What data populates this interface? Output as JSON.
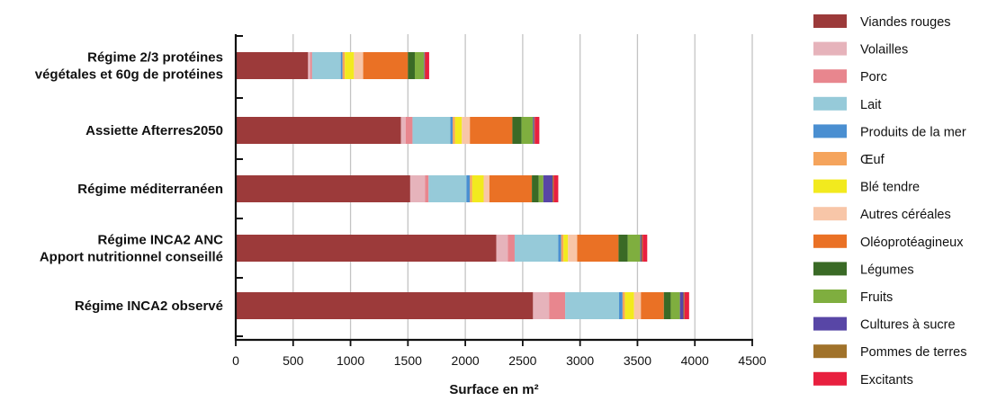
{
  "chart_data": {
    "type": "bar",
    "orientation": "horizontal",
    "stacked": true,
    "xlabel": "Surface en m²",
    "xlim": [
      0,
      4500
    ],
    "xticks": [
      0,
      500,
      1000,
      1500,
      2000,
      2500,
      3000,
      3500,
      4000,
      4500
    ],
    "grid": true,
    "legend_position": "right",
    "categories": [
      [
        "Régime 2/3 protéines",
        "végétales et 60g de protéines"
      ],
      [
        "Assiette Afterres2050"
      ],
      [
        "Régime méditerranéen"
      ],
      [
        "Régime INCA2 ANC",
        "Apport nutritionnel conseillé"
      ],
      [
        "Régime INCA2 observé"
      ]
    ],
    "series": [
      {
        "name": "Viandes rouges",
        "color": "#9c3a3a",
        "values": [
          630,
          1440,
          1520,
          2270,
          2590
        ]
      },
      {
        "name": "Volailles",
        "color": "#e6b3bb",
        "values": [
          20,
          40,
          130,
          100,
          140
        ]
      },
      {
        "name": "Porc",
        "color": "#e8868e",
        "values": [
          15,
          60,
          30,
          60,
          140
        ]
      },
      {
        "name": "Lait",
        "color": "#96cad9",
        "values": [
          250,
          330,
          330,
          380,
          470
        ]
      },
      {
        "name": "Produits de la mer",
        "color": "#4a8fd1",
        "values": [
          15,
          20,
          30,
          25,
          30
        ]
      },
      {
        "name": "Œuf",
        "color": "#f5a45c",
        "values": [
          20,
          20,
          20,
          20,
          20
        ]
      },
      {
        "name": "Blé tendre",
        "color": "#f2ea1e",
        "values": [
          80,
          60,
          100,
          40,
          80
        ]
      },
      {
        "name": "Autres céréales",
        "color": "#f8c6a8",
        "values": [
          80,
          70,
          50,
          80,
          60
        ]
      },
      {
        "name": "Oléoprotéagineux",
        "color": "#ea7125",
        "values": [
          390,
          370,
          370,
          360,
          200
        ]
      },
      {
        "name": "Légumes",
        "color": "#3a6a26",
        "values": [
          60,
          80,
          60,
          80,
          60
        ]
      },
      {
        "name": "Fruits",
        "color": "#7fae3f",
        "values": [
          80,
          100,
          40,
          110,
          80
        ]
      },
      {
        "name": "Cultures à sucre",
        "color": "#5846a6",
        "values": [
          5,
          10,
          80,
          10,
          30
        ]
      },
      {
        "name": "Pommes de terres",
        "color": "#a0722a",
        "values": [
          5,
          5,
          10,
          10,
          10
        ]
      },
      {
        "name": "Excitants",
        "color": "#e8203f",
        "values": [
          35,
          40,
          40,
          40,
          40
        ]
      }
    ]
  }
}
